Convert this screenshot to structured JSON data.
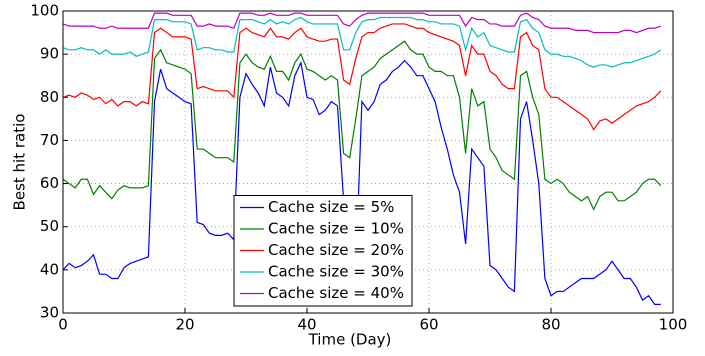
{
  "chart_data": {
    "type": "line",
    "x_label": "Time (Day)",
    "y_label": "Best hit ratio",
    "xlim": [
      0,
      100
    ],
    "ylim": [
      30,
      100
    ],
    "xticks": [
      0,
      20,
      40,
      60,
      80,
      100
    ],
    "yticks": [
      30,
      40,
      50,
      60,
      70,
      80,
      90,
      100
    ],
    "grid": true,
    "legend": "lower center",
    "x": [
      0,
      1,
      2,
      3,
      4,
      5,
      6,
      7,
      8,
      9,
      10,
      11,
      12,
      13,
      14,
      15,
      16,
      17,
      18,
      19,
      20,
      21,
      22,
      23,
      24,
      25,
      26,
      27,
      28,
      29,
      30,
      31,
      32,
      33,
      34,
      35,
      36,
      37,
      38,
      39,
      40,
      41,
      42,
      43,
      44,
      45,
      46,
      47,
      48,
      49,
      50,
      51,
      52,
      53,
      54,
      55,
      56,
      57,
      58,
      59,
      60,
      61,
      62,
      63,
      64,
      65,
      66,
      67,
      68,
      69,
      70,
      71,
      72,
      73,
      74,
      75,
      76,
      77,
      78,
      79,
      80,
      81,
      82,
      83,
      84,
      85,
      86,
      87,
      88,
      89,
      90,
      91,
      92,
      93,
      94,
      95,
      96,
      97,
      98
    ],
    "series": [
      {
        "name": "Cache size = 5%",
        "color": "#0000ff",
        "values": [
          40,
          41.5,
          40.5,
          41,
          42,
          43.5,
          39,
          39,
          38,
          38,
          40.5,
          41.5,
          42,
          42.5,
          43,
          79,
          86.5,
          82,
          81,
          80,
          79,
          78.5,
          51,
          50.5,
          48.5,
          48,
          48,
          48.5,
          47,
          80,
          85.5,
          83,
          81,
          78,
          87,
          81,
          80,
          78,
          85,
          88,
          80,
          79.5,
          76,
          77,
          79,
          78,
          56,
          42,
          40,
          79,
          77,
          79,
          83,
          84,
          86,
          87,
          88.5,
          87,
          85,
          85,
          82,
          79,
          73,
          68,
          62,
          58,
          46,
          68,
          66,
          64,
          41,
          40,
          38,
          36,
          35,
          75,
          79,
          70,
          60,
          38,
          34,
          35,
          35,
          36,
          37,
          38,
          38,
          38,
          39,
          40,
          42,
          40,
          38,
          38,
          36,
          33,
          34,
          32,
          32
        ]
      },
      {
        "name": "Cache size = 10%",
        "color": "#008000",
        "values": [
          61,
          60,
          59,
          61,
          61,
          57.5,
          59.5,
          58,
          56.5,
          58.5,
          59.5,
          59,
          59,
          59,
          59.5,
          89,
          91,
          88,
          87.5,
          87,
          86.5,
          85.5,
          68,
          68,
          67,
          66,
          66,
          66,
          65,
          88,
          90,
          88,
          87,
          86.5,
          89.5,
          86,
          86,
          84,
          88,
          90,
          86.5,
          86,
          85,
          84,
          85,
          84,
          67,
          66,
          75,
          85,
          86,
          87,
          89,
          90,
          91,
          92,
          93,
          91,
          90,
          90,
          87,
          86,
          86,
          85,
          85,
          80,
          67,
          82,
          78,
          79,
          68,
          66,
          63,
          62,
          61,
          85,
          86,
          80,
          76,
          61,
          60,
          61,
          60,
          58,
          57,
          56,
          57,
          54,
          57,
          58,
          58,
          56,
          56,
          57,
          58,
          60,
          61,
          61,
          59.5
        ]
      },
      {
        "name": "Cache size = 20%",
        "color": "#ff0000",
        "values": [
          80,
          80.5,
          80,
          81,
          80.5,
          79.5,
          80,
          78.5,
          79.5,
          78,
          79,
          79,
          78,
          79,
          78.5,
          95,
          96,
          95,
          94,
          94,
          94,
          93.5,
          82,
          82.5,
          82,
          81.5,
          81.5,
          81.5,
          80,
          95,
          96,
          95,
          94.5,
          94,
          96,
          94,
          94,
          93.5,
          95,
          96,
          94,
          93.5,
          93,
          93,
          93.5,
          93.5,
          84,
          83,
          89,
          94,
          95,
          95,
          96,
          96.5,
          97,
          97,
          97,
          96.5,
          96,
          96,
          95,
          94.5,
          94,
          93.5,
          93,
          92,
          85,
          92,
          90,
          90,
          86,
          85,
          83,
          82,
          82,
          94,
          95,
          92,
          91,
          82,
          80,
          80,
          79,
          78,
          77,
          76,
          75,
          72.5,
          74.5,
          75,
          74,
          75,
          76,
          77,
          78,
          78.5,
          79,
          80,
          81.5
        ]
      },
      {
        "name": "Cache size = 30%",
        "color": "#00bfbf",
        "values": [
          91.5,
          91,
          91,
          91.5,
          91,
          91,
          90,
          91,
          90,
          90,
          90,
          90.5,
          89.5,
          90,
          90.5,
          98,
          98,
          98,
          97.5,
          97.5,
          97.5,
          97,
          91,
          91.5,
          91.5,
          91,
          91,
          90.5,
          90.5,
          98,
          98,
          98,
          97.5,
          97,
          98,
          97,
          97.5,
          97,
          98,
          98.5,
          97.5,
          97,
          97,
          97,
          97,
          97,
          91,
          91,
          95,
          97.5,
          98,
          98,
          98.5,
          98.5,
          98.5,
          98.5,
          98.5,
          98.5,
          98,
          98,
          97.5,
          97.5,
          97,
          97,
          97,
          96.5,
          91,
          96,
          94,
          95,
          92,
          91.5,
          91,
          90.5,
          90.5,
          97.5,
          98,
          96,
          95,
          91,
          90,
          90,
          89.5,
          89.5,
          89,
          88.5,
          87.5,
          87,
          87.5,
          87.5,
          87,
          87.5,
          88,
          88,
          88.5,
          89,
          89.5,
          90,
          91
        ]
      },
      {
        "name": "Cache size = 40%",
        "color": "#bf00bf",
        "values": [
          97,
          96.5,
          96.5,
          96.5,
          96.5,
          96.5,
          96,
          96,
          96.5,
          96,
          96,
          96,
          96,
          96,
          96,
          99.5,
          99.5,
          99.5,
          99,
          99,
          99,
          99,
          96.5,
          96.5,
          97,
          96.5,
          96.5,
          96.5,
          96,
          99.5,
          99.5,
          99.5,
          99,
          99,
          99.5,
          99,
          99,
          99,
          99.5,
          99.5,
          99,
          99,
          99,
          99,
          99,
          99,
          97,
          96.5,
          98,
          99,
          99.5,
          99.5,
          99.5,
          99.5,
          99.5,
          99.5,
          99.5,
          99.5,
          99.5,
          99.5,
          99,
          99,
          99,
          99,
          99,
          99,
          96.5,
          98.5,
          98,
          98,
          97,
          97,
          96.5,
          96.5,
          96.5,
          99,
          99.5,
          98.5,
          98,
          96.5,
          96,
          96,
          96,
          96,
          95.5,
          95.5,
          95.5,
          95,
          95,
          95,
          95,
          95,
          95.5,
          95.5,
          95,
          95.5,
          96,
          96,
          96.5
        ]
      }
    ]
  }
}
